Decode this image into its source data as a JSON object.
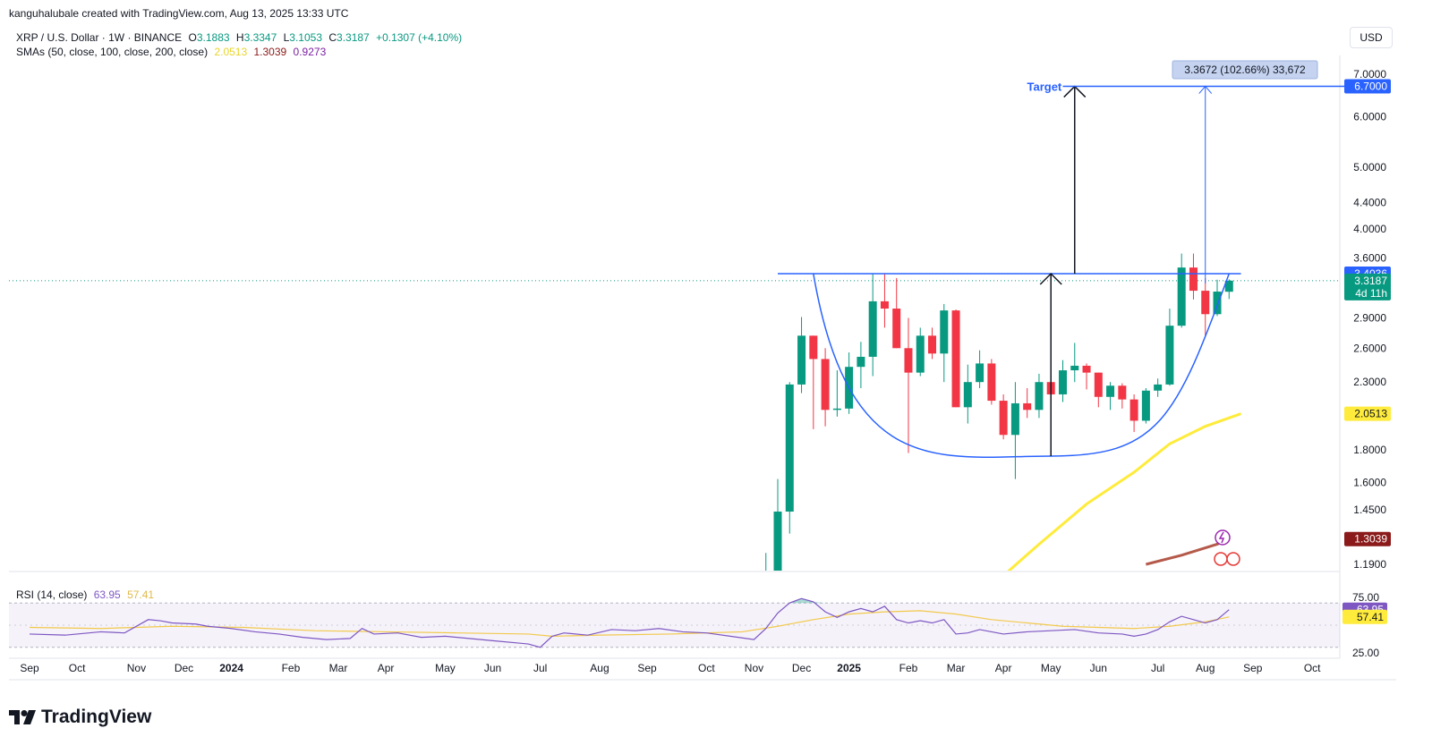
{
  "attribution": "kanguhalubale created with TradingView.com, Aug 13, 2025 13:33 UTC",
  "symbol": {
    "name": "XRP / U.S. Dollar · 1W · BINANCE",
    "o_label": "O",
    "o": "3.1883",
    "h_label": "H",
    "h": "3.3347",
    "l_label": "L",
    "l": "3.1053",
    "c_label": "C",
    "c": "3.3187",
    "change": "+0.1307 (+4.10%)"
  },
  "sma_legend": {
    "label": "SMAs (50, close, 100, close, 200, close)",
    "v50": "2.0513",
    "v100": "1.3039",
    "v200": "0.9273"
  },
  "currency_button": "USD",
  "rsi_legend": {
    "label": "RSI (14, close)",
    "rsi": "63.95",
    "ma": "57.41"
  },
  "brand": "TradingView",
  "colors": {
    "up": "#089981",
    "down": "#f23645",
    "pattern": "#2962ff",
    "sma50": "#ffeb3b",
    "sma100": "#8b1a1a",
    "rsi": "#7e57c2",
    "rsi_ma": "#f2c94c"
  },
  "chart_data": {
    "type": "candlestick",
    "interval": "1W",
    "y_scale": "log",
    "y_ticks": [
      7.0,
      6.0,
      5.0,
      4.4,
      4.0,
      3.6,
      2.9,
      2.6,
      2.3,
      1.8,
      1.6,
      1.45,
      1.19
    ],
    "y_tick_labels": [
      "7.0000",
      "6.0000",
      "5.0000",
      "4.4000",
      "4.0000",
      "3.6000",
      "2.9000",
      "2.6000",
      "2.3000",
      "1.8000",
      "1.6000",
      "1.4500",
      "1.1900"
    ],
    "x_labels": [
      {
        "t": 0,
        "label": "Sep",
        "bold": false
      },
      {
        "t": 4,
        "label": "Oct",
        "bold": false
      },
      {
        "t": 9,
        "label": "Nov",
        "bold": false
      },
      {
        "t": 13,
        "label": "Dec",
        "bold": false
      },
      {
        "t": 17,
        "label": "2024",
        "bold": true
      },
      {
        "t": 22,
        "label": "Feb",
        "bold": false
      },
      {
        "t": 26,
        "label": "Mar",
        "bold": false
      },
      {
        "t": 30,
        "label": "Apr",
        "bold": false
      },
      {
        "t": 35,
        "label": "May",
        "bold": false
      },
      {
        "t": 39,
        "label": "Jun",
        "bold": false
      },
      {
        "t": 43,
        "label": "Jul",
        "bold": false
      },
      {
        "t": 48,
        "label": "Aug",
        "bold": false
      },
      {
        "t": 52,
        "label": "Sep",
        "bold": false
      },
      {
        "t": 57,
        "label": "Oct",
        "bold": false
      },
      {
        "t": 61,
        "label": "Nov",
        "bold": false
      },
      {
        "t": 65,
        "label": "Dec",
        "bold": false
      },
      {
        "t": 69,
        "label": "2025",
        "bold": true
      },
      {
        "t": 74,
        "label": "Feb",
        "bold": false
      },
      {
        "t": 78,
        "label": "Mar",
        "bold": false
      },
      {
        "t": 82,
        "label": "Apr",
        "bold": false
      },
      {
        "t": 86,
        "label": "May",
        "bold": false
      },
      {
        "t": 90,
        "label": "Jun",
        "bold": false
      },
      {
        "t": 95,
        "label": "Jul",
        "bold": false
      },
      {
        "t": 99,
        "label": "Aug",
        "bold": false
      },
      {
        "t": 103,
        "label": "Sep",
        "bold": false
      },
      {
        "t": 108,
        "label": "Oct",
        "bold": false
      }
    ],
    "candles": [
      {
        "t": 62,
        "o": 1.08,
        "h": 1.24,
        "l": 1.05,
        "c": 1.12
      },
      {
        "t": 63,
        "o": 1.12,
        "h": 1.62,
        "l": 1.08,
        "c": 1.44
      },
      {
        "t": 64,
        "o": 1.44,
        "h": 2.3,
        "l": 1.33,
        "c": 2.28
      },
      {
        "t": 65,
        "o": 2.28,
        "h": 2.91,
        "l": 2.21,
        "c": 2.72
      },
      {
        "t": 66,
        "o": 2.72,
        "h": 2.72,
        "l": 1.94,
        "c": 2.5
      },
      {
        "t": 67,
        "o": 2.5,
        "h": 2.6,
        "l": 1.96,
        "c": 2.08
      },
      {
        "t": 68,
        "o": 2.08,
        "h": 2.4,
        "l": 2.03,
        "c": 2.09
      },
      {
        "t": 69,
        "o": 2.09,
        "h": 2.56,
        "l": 2.05,
        "c": 2.43
      },
      {
        "t": 70,
        "o": 2.43,
        "h": 2.66,
        "l": 2.25,
        "c": 2.52
      },
      {
        "t": 71,
        "o": 2.52,
        "h": 3.4,
        "l": 2.35,
        "c": 3.08
      },
      {
        "t": 72,
        "o": 3.08,
        "h": 3.4,
        "l": 2.8,
        "c": 3.0
      },
      {
        "t": 73,
        "o": 3.0,
        "h": 3.35,
        "l": 2.6,
        "c": 2.6
      },
      {
        "t": 74,
        "o": 2.6,
        "h": 2.9,
        "l": 1.78,
        "c": 2.38
      },
      {
        "t": 75,
        "o": 2.38,
        "h": 2.8,
        "l": 2.35,
        "c": 2.72
      },
      {
        "t": 76,
        "o": 2.72,
        "h": 2.8,
        "l": 2.5,
        "c": 2.55
      },
      {
        "t": 77,
        "o": 2.55,
        "h": 3.05,
        "l": 2.3,
        "c": 2.98
      },
      {
        "t": 78,
        "o": 2.98,
        "h": 2.99,
        "l": 2.1,
        "c": 2.1
      },
      {
        "t": 79,
        "o": 2.1,
        "h": 2.45,
        "l": 1.98,
        "c": 2.3
      },
      {
        "t": 80,
        "o": 2.3,
        "h": 2.58,
        "l": 2.25,
        "c": 2.46
      },
      {
        "t": 81,
        "o": 2.46,
        "h": 2.5,
        "l": 2.12,
        "c": 2.15
      },
      {
        "t": 82,
        "o": 2.15,
        "h": 2.2,
        "l": 1.87,
        "c": 1.9
      },
      {
        "t": 83,
        "o": 1.9,
        "h": 2.3,
        "l": 1.62,
        "c": 2.13
      },
      {
        "t": 84,
        "o": 2.13,
        "h": 2.25,
        "l": 2.02,
        "c": 2.08
      },
      {
        "t": 85,
        "o": 2.08,
        "h": 2.37,
        "l": 2.02,
        "c": 2.3
      },
      {
        "t": 86,
        "o": 2.3,
        "h": 2.35,
        "l": 2.13,
        "c": 2.2
      },
      {
        "t": 87,
        "o": 2.2,
        "h": 2.49,
        "l": 2.14,
        "c": 2.4
      },
      {
        "t": 88,
        "o": 2.4,
        "h": 2.65,
        "l": 2.3,
        "c": 2.44
      },
      {
        "t": 89,
        "o": 2.44,
        "h": 2.46,
        "l": 2.24,
        "c": 2.38
      },
      {
        "t": 90,
        "o": 2.38,
        "h": 2.38,
        "l": 2.1,
        "c": 2.18
      },
      {
        "t": 91,
        "o": 2.18,
        "h": 2.3,
        "l": 2.08,
        "c": 2.27
      },
      {
        "t": 92,
        "o": 2.27,
        "h": 2.29,
        "l": 2.09,
        "c": 2.16
      },
      {
        "t": 93,
        "o": 2.16,
        "h": 2.2,
        "l": 1.92,
        "c": 2.0
      },
      {
        "t": 94,
        "o": 2.0,
        "h": 2.25,
        "l": 1.98,
        "c": 2.23
      },
      {
        "t": 95,
        "o": 2.23,
        "h": 2.33,
        "l": 2.18,
        "c": 2.28
      },
      {
        "t": 96,
        "o": 2.28,
        "h": 3.0,
        "l": 2.27,
        "c": 2.82
      },
      {
        "t": 97,
        "o": 2.82,
        "h": 3.66,
        "l": 2.8,
        "c": 3.48
      },
      {
        "t": 98,
        "o": 3.48,
        "h": 3.66,
        "l": 3.1,
        "c": 3.2
      },
      {
        "t": 99,
        "o": 3.2,
        "h": 3.35,
        "l": 2.72,
        "c": 2.94
      },
      {
        "t": 100,
        "o": 2.94,
        "h": 3.33,
        "l": 2.92,
        "c": 3.19
      },
      {
        "t": 101,
        "o": 3.1883,
        "h": 3.3347,
        "l": 3.1053,
        "c": 3.3187
      }
    ],
    "sma50": [
      [
        81,
        1.1
      ],
      [
        85,
        1.28
      ],
      [
        89,
        1.48
      ],
      [
        93,
        1.66
      ],
      [
        96,
        1.84
      ],
      [
        99,
        1.96
      ],
      [
        102,
        2.0513
      ]
    ],
    "sma100": [
      [
        94,
        1.19
      ],
      [
        97,
        1.23
      ],
      [
        100,
        1.28
      ],
      [
        101,
        1.3039
      ]
    ],
    "resistance": {
      "value": 3.4036,
      "t_start": 63,
      "t_end": 102
    },
    "cup": {
      "t_left": 66,
      "t_bottom": 86,
      "t_right": 101,
      "rim": 3.4036,
      "bottom": 1.76
    },
    "target": {
      "label": "Target",
      "value": 6.7,
      "t_start": 87,
      "t_end": 111
    },
    "measure_label": "3.3672 (102.66%) 33,672",
    "price_tags": [
      {
        "value": 6.7,
        "label": "6.7000",
        "bg": "#2962ff",
        "fg": "#ffffff",
        "sub": ""
      },
      {
        "value": 3.4036,
        "label": "3.4036",
        "bg": "#2962ff",
        "fg": "#ffffff",
        "sub": ""
      },
      {
        "value": 3.3187,
        "label": "3.3187",
        "bg": "#089981",
        "fg": "#ffffff",
        "sub": "4d 11h"
      },
      {
        "value": 2.0513,
        "label": "2.0513",
        "bg": "#ffeb3b",
        "fg": "#131722",
        "sub": ""
      },
      {
        "value": 1.3039,
        "label": "1.3039",
        "bg": "#8b1a1a",
        "fg": "#ffffff",
        "sub": ""
      }
    ],
    "rsi": {
      "ticks": [
        75,
        25
      ],
      "tick_labels": [
        "75.00",
        "25.00"
      ],
      "band": [
        70,
        30
      ],
      "value_label": "63.95",
      "ma_label": "57.41",
      "values": [
        [
          0,
          42
        ],
        [
          3,
          41
        ],
        [
          6,
          44
        ],
        [
          8,
          43
        ],
        [
          10,
          55
        ],
        [
          11,
          54
        ],
        [
          12,
          52
        ],
        [
          14,
          51
        ],
        [
          15,
          49
        ],
        [
          17,
          47
        ],
        [
          19,
          44
        ],
        [
          21,
          42
        ],
        [
          23,
          39
        ],
        [
          25,
          37
        ],
        [
          27,
          38
        ],
        [
          28,
          47
        ],
        [
          29,
          42
        ],
        [
          31,
          43
        ],
        [
          33,
          39
        ],
        [
          35,
          40
        ],
        [
          37,
          38
        ],
        [
          39,
          36
        ],
        [
          41,
          34
        ],
        [
          42,
          33
        ],
        [
          43,
          30
        ],
        [
          44,
          40
        ],
        [
          45,
          43
        ],
        [
          47,
          41
        ],
        [
          49,
          46
        ],
        [
          51,
          45
        ],
        [
          53,
          47
        ],
        [
          55,
          44
        ],
        [
          57,
          43
        ],
        [
          59,
          40
        ],
        [
          61,
          37
        ],
        [
          62,
          47
        ],
        [
          63,
          61
        ],
        [
          64,
          70
        ],
        [
          65,
          74
        ],
        [
          66,
          71
        ],
        [
          67,
          62
        ],
        [
          68,
          57
        ],
        [
          69,
          62
        ],
        [
          70,
          65
        ],
        [
          71,
          62
        ],
        [
          72,
          67
        ],
        [
          73,
          55
        ],
        [
          74,
          52
        ],
        [
          75,
          54
        ],
        [
          76,
          52
        ],
        [
          77,
          55
        ],
        [
          78,
          42
        ],
        [
          79,
          43
        ],
        [
          80,
          46
        ],
        [
          81,
          44
        ],
        [
          82,
          42
        ],
        [
          84,
          44
        ],
        [
          86,
          45
        ],
        [
          88,
          46
        ],
        [
          90,
          43
        ],
        [
          92,
          42
        ],
        [
          93,
          40
        ],
        [
          94,
          42
        ],
        [
          95,
          46
        ],
        [
          96,
          53
        ],
        [
          97,
          58
        ],
        [
          98,
          55
        ],
        [
          99,
          52
        ],
        [
          100,
          55
        ],
        [
          101,
          63.95
        ]
      ],
      "ma": [
        [
          0,
          48
        ],
        [
          6,
          47
        ],
        [
          12,
          49
        ],
        [
          18,
          48
        ],
        [
          24,
          45
        ],
        [
          30,
          44
        ],
        [
          36,
          43
        ],
        [
          42,
          42
        ],
        [
          44,
          40
        ],
        [
          48,
          41
        ],
        [
          54,
          42
        ],
        [
          60,
          44
        ],
        [
          63,
          49
        ],
        [
          66,
          55
        ],
        [
          69,
          60
        ],
        [
          72,
          62
        ],
        [
          75,
          63
        ],
        [
          78,
          60
        ],
        [
          81,
          55
        ],
        [
          84,
          52
        ],
        [
          87,
          49
        ],
        [
          90,
          48
        ],
        [
          93,
          47
        ],
        [
          96,
          49
        ],
        [
          99,
          53
        ],
        [
          101,
          57.41
        ]
      ]
    }
  }
}
